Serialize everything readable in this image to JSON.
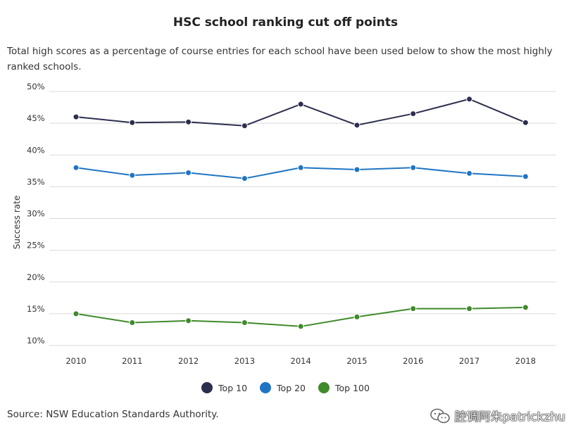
{
  "header": {
    "title": "HSC school ranking cut off points",
    "subtitle": "Total high scores as a percentage of course entries for each school have been used below to show the most highly ranked schools."
  },
  "footer": {
    "source": "Source: NSW Education Standards Authority.",
    "watermark": "腔调阿朱patrickzhu",
    "watermark_icon": "wechat-icon"
  },
  "chart_data": {
    "type": "line",
    "title": "HSC school ranking cut off points",
    "xlabel": "",
    "ylabel": "Success rate",
    "x": [
      "2010",
      "2011",
      "2012",
      "2013",
      "2014",
      "2015",
      "2016",
      "2017",
      "2018"
    ],
    "ylim": [
      10,
      50
    ],
    "yticks": [
      10,
      15,
      20,
      25,
      30,
      35,
      40,
      45,
      50
    ],
    "ytick_labels": [
      "10%",
      "15%",
      "20%",
      "25%",
      "30%",
      "35%",
      "40%",
      "45%",
      "50%"
    ],
    "grid": true,
    "legend_position": "bottom-center",
    "series": [
      {
        "name": "Top 10",
        "color": "#2c2e4e",
        "values": [
          46.0,
          45.1,
          45.2,
          44.6,
          48.0,
          44.7,
          46.5,
          48.8,
          45.1
        ]
      },
      {
        "name": "Top 20",
        "color": "#1f75c4",
        "values": [
          38.0,
          36.8,
          37.2,
          36.3,
          38.0,
          37.7,
          38.0,
          37.1,
          36.6
        ]
      },
      {
        "name": "Top 100",
        "color": "#3f8a2a",
        "values": [
          15.0,
          13.6,
          13.9,
          13.6,
          13.0,
          14.5,
          15.8,
          15.8,
          16.0
        ]
      }
    ]
  }
}
